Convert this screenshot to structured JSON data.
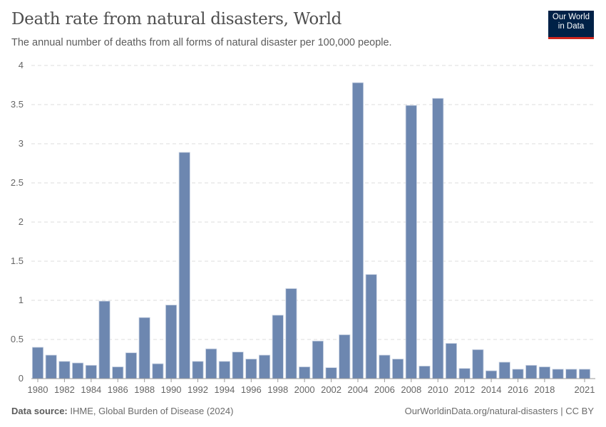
{
  "header": {
    "title": "Death rate from natural disasters, World",
    "subtitle": "The annual number of deaths from all forms of natural disaster per 100,000 people.",
    "logo_line1": "Our World",
    "logo_line2": "in Data"
  },
  "footer": {
    "source_label": "Data source:",
    "source_text": " IHME, Global Burden of Disease (2024)",
    "url": "OurWorldinData.org/natural-disasters | CC BY"
  },
  "chart_data": {
    "type": "bar",
    "title": "Death rate from natural disasters, World",
    "xlabel": "",
    "ylabel": "",
    "ylim": [
      0,
      4
    ],
    "yticks": [
      "0",
      "0.5",
      "1",
      "1.5",
      "2",
      "2.5",
      "3",
      "3.5",
      "4"
    ],
    "xticks": [
      "1980",
      "1982",
      "1984",
      "1986",
      "1988",
      "1990",
      "1992",
      "1994",
      "1996",
      "1998",
      "2000",
      "2002",
      "2004",
      "2006",
      "2008",
      "2010",
      "2012",
      "2014",
      "2016",
      "2018",
      "2021"
    ],
    "grid": true,
    "color": "#6d87b0",
    "categories": [
      1980,
      1981,
      1982,
      1983,
      1984,
      1985,
      1986,
      1987,
      1988,
      1989,
      1990,
      1991,
      1992,
      1993,
      1994,
      1995,
      1996,
      1997,
      1998,
      1999,
      2000,
      2001,
      2002,
      2003,
      2004,
      2005,
      2006,
      2007,
      2008,
      2009,
      2010,
      2011,
      2012,
      2013,
      2014,
      2015,
      2016,
      2017,
      2018,
      2019,
      2020,
      2021
    ],
    "values": [
      0.4,
      0.3,
      0.22,
      0.2,
      0.17,
      0.99,
      0.15,
      0.33,
      0.78,
      0.19,
      0.94,
      2.89,
      0.22,
      0.38,
      0.22,
      0.34,
      0.25,
      0.3,
      0.81,
      1.15,
      0.15,
      0.48,
      0.14,
      0.56,
      3.78,
      1.33,
      0.3,
      0.25,
      3.49,
      0.16,
      3.58,
      0.45,
      0.13,
      0.37,
      0.1,
      0.21,
      0.12,
      0.17,
      0.15,
      0.12,
      0.12,
      0.12
    ]
  }
}
